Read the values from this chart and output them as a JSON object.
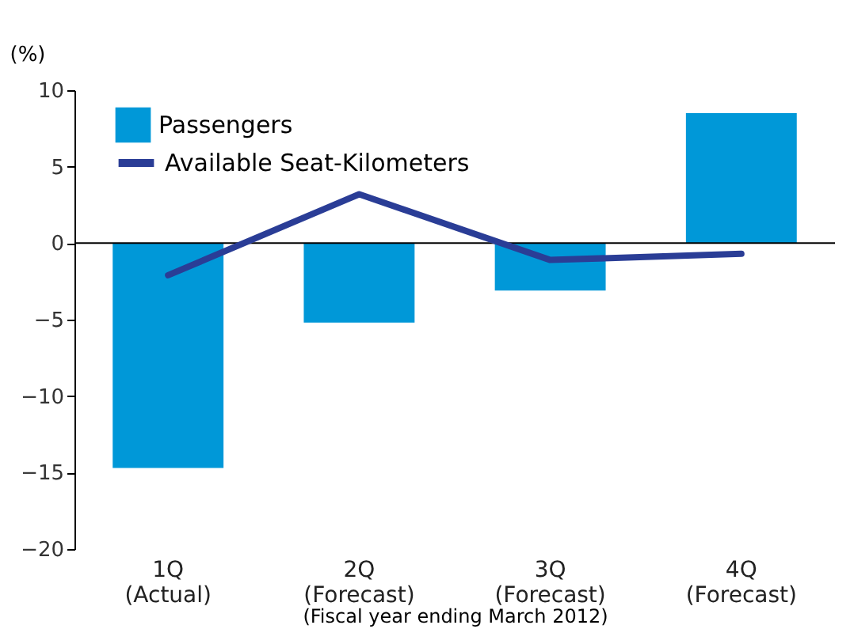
{
  "chart_data": {
    "type": "bar",
    "ylabel": "(%)",
    "xlabel": "(Fiscal year ending March 2012)",
    "categories": [
      "1Q\n(Actual)",
      "2Q\n(Forecast)",
      "3Q\n(Forecast)",
      "4Q\n(Forecast)"
    ],
    "series": [
      {
        "name": "Passengers",
        "color": "#0098d8",
        "values": [
          -14.7,
          -5.2,
          -3.1,
          8.5
        ]
      },
      {
        "name": "Available Seat-Kilometers",
        "type": "line",
        "color": "#2a3d96",
        "values": [
          -2.1,
          3.2,
          -1.1,
          -0.7
        ]
      }
    ],
    "ylim": [
      -20,
      10
    ],
    "yticks": [
      -20,
      -15,
      -10,
      -5,
      0,
      5,
      10
    ],
    "ref_lines": [
      {
        "axis": "y",
        "value": 0,
        "color": "#000000"
      }
    ],
    "grid": false,
    "legend": "top left"
  }
}
